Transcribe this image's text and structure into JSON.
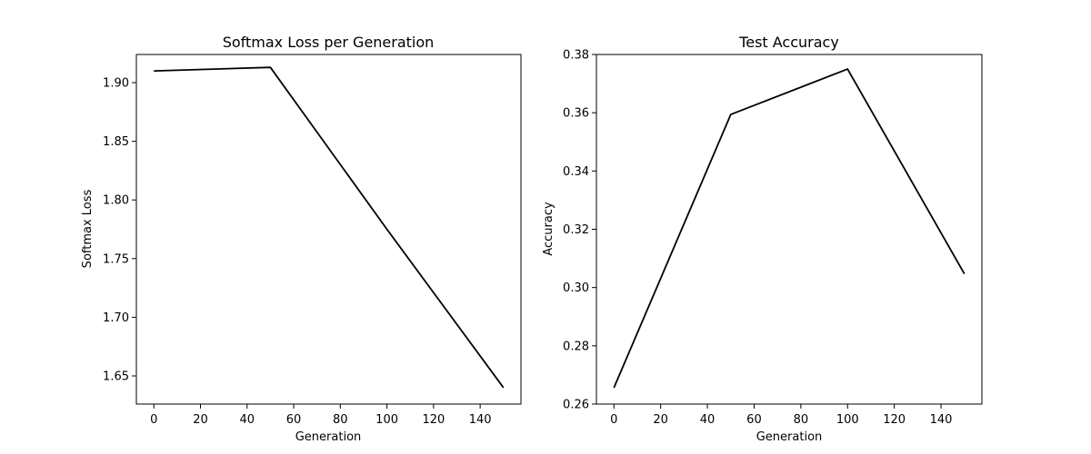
{
  "chart_data": [
    {
      "type": "line",
      "title": "Softmax Loss per Generation",
      "xlabel": "Generation",
      "ylabel": "Softmax Loss",
      "xlim": [
        -7.5,
        157.5
      ],
      "ylim": [
        1.626,
        1.924
      ],
      "xticks": [
        0,
        20,
        40,
        60,
        80,
        100,
        120,
        140
      ],
      "yticks": [
        1.65,
        1.7,
        1.75,
        1.8,
        1.85,
        1.9
      ],
      "ytick_labels": [
        "1.65",
        "1.70",
        "1.75",
        "1.80",
        "1.85",
        "1.90"
      ],
      "grid": false,
      "series": [
        {
          "color": "#000000",
          "x": [
            0,
            50,
            100,
            150
          ],
          "y": [
            1.91,
            1.913,
            1.775,
            1.64
          ]
        }
      ]
    },
    {
      "type": "line",
      "title": "Test Accuracy",
      "xlabel": "Generation",
      "ylabel": "Accuracy",
      "xlim": [
        -7.5,
        157.5
      ],
      "ylim": [
        0.26,
        0.38
      ],
      "xticks": [
        0,
        20,
        40,
        60,
        80,
        100,
        120,
        140
      ],
      "yticks": [
        0.26,
        0.28,
        0.3,
        0.32,
        0.34,
        0.36,
        0.38
      ],
      "ytick_labels": [
        "0.26",
        "0.28",
        "0.30",
        "0.32",
        "0.34",
        "0.36",
        "0.38"
      ],
      "grid": false,
      "series": [
        {
          "color": "#000000",
          "x": [
            0,
            50,
            100,
            150
          ],
          "y": [
            0.2656,
            0.3594,
            0.375,
            0.3047
          ]
        }
      ]
    }
  ]
}
